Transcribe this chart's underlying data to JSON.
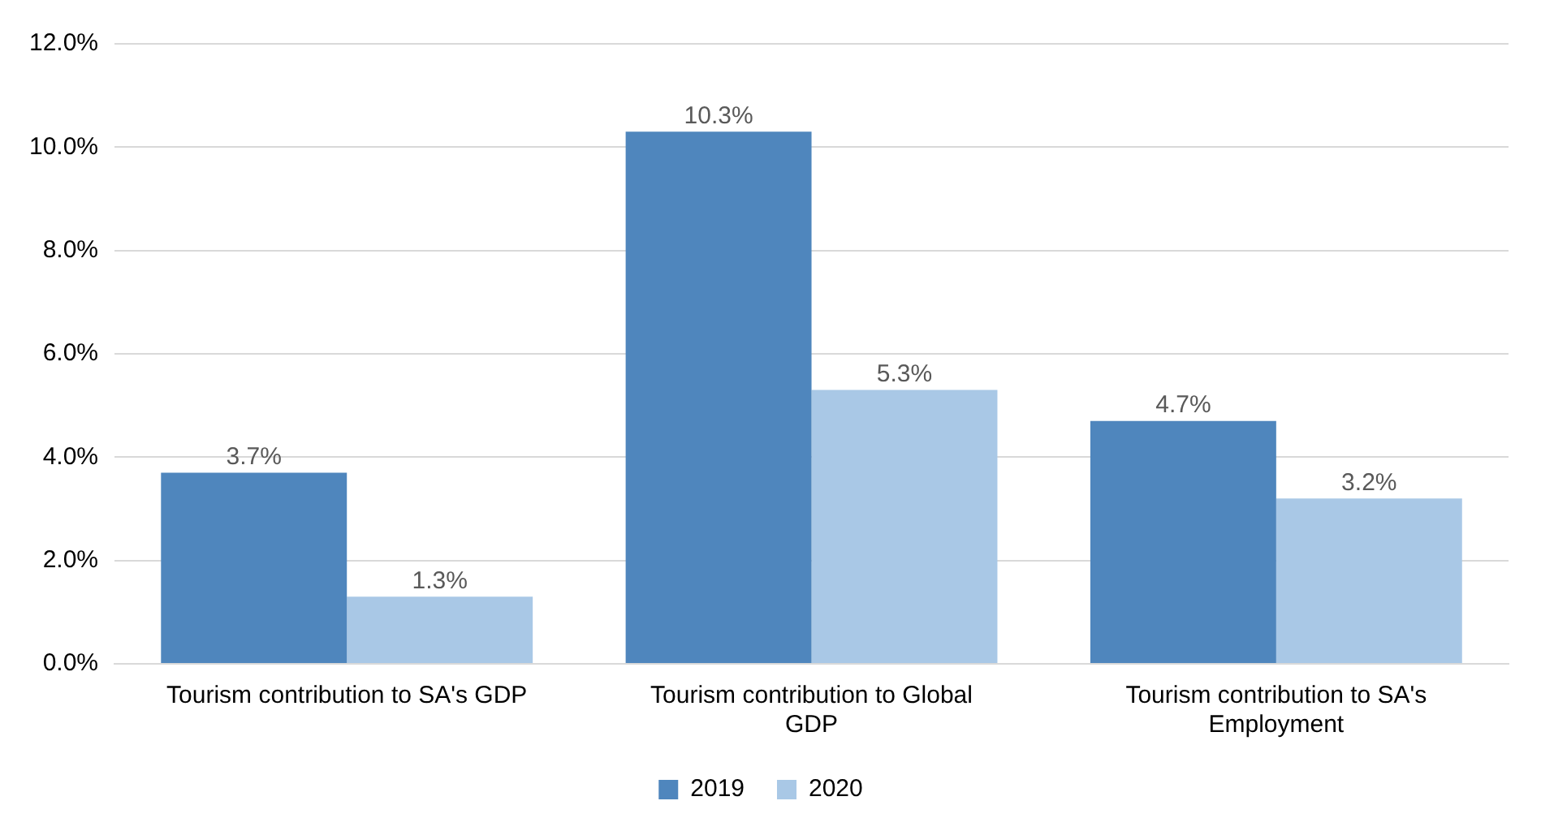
{
  "chart_data": {
    "type": "bar",
    "categories": [
      "Tourism contribution to SA's GDP",
      "Tourism contribution to Global GDP",
      "Tourism contribution to SA's Employment"
    ],
    "series": [
      {
        "name": "2019",
        "color": "#4f86bd",
        "values": [
          3.7,
          10.3,
          4.7
        ],
        "value_labels": [
          "3.7%",
          "10.3%",
          "4.7%"
        ]
      },
      {
        "name": "2020",
        "color": "#a9c8e6",
        "values": [
          1.3,
          5.3,
          3.2
        ],
        "value_labels": [
          "1.3%",
          "5.3%",
          "3.2%"
        ]
      }
    ],
    "ylim": [
      0,
      12
    ],
    "yticks": [
      {
        "value": 0,
        "label": "0.0%"
      },
      {
        "value": 2,
        "label": "2.0%"
      },
      {
        "value": 4,
        "label": "4.0%"
      },
      {
        "value": 6,
        "label": "6.0%"
      },
      {
        "value": 8,
        "label": "8.0%"
      },
      {
        "value": 10,
        "label": "10.0%"
      },
      {
        "value": 12,
        "label": "12.0%"
      }
    ],
    "grid": "y",
    "legend": "bottom"
  }
}
